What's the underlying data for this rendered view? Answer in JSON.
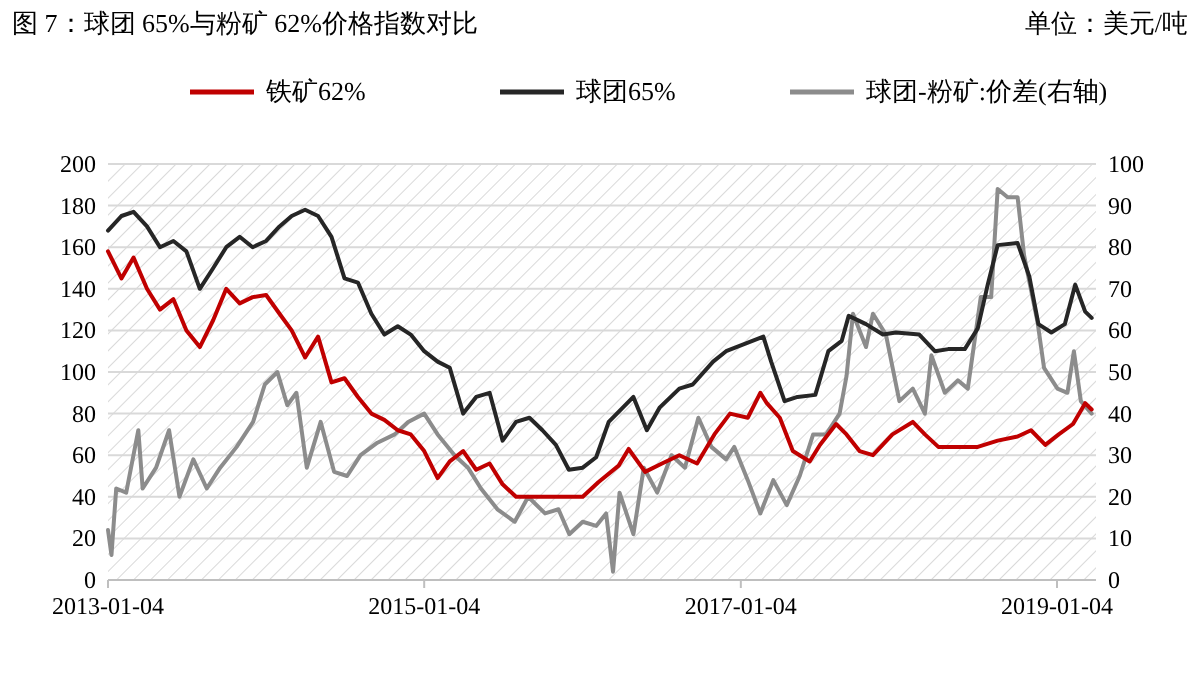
{
  "chart_data": {
    "type": "line",
    "title": "图 7：球团 65%与粉矿 62%价格指数对比",
    "annotations": [
      "单位：美元/吨"
    ],
    "xlim": [
      "2013-01-04",
      "2019-04-04"
    ],
    "xticks": [
      {
        "value": "2013-01-04",
        "label": "2013-01-04"
      },
      {
        "value": "2015-01-04",
        "label": "2015-01-04"
      },
      {
        "value": "2017-01-04",
        "label": "2017-01-04"
      },
      {
        "value": "2019-01-04",
        "label": "2019-01-04"
      }
    ],
    "ylim": [
      0,
      200
    ],
    "yticks": [
      0,
      20,
      40,
      60,
      80,
      100,
      120,
      140,
      160,
      180,
      200
    ],
    "y2lim": [
      0,
      100
    ],
    "y2ticks": [
      0,
      10,
      20,
      30,
      40,
      50,
      60,
      70,
      80,
      90,
      100
    ],
    "grid": "y",
    "legend": "top",
    "series": [
      {
        "name": "铁矿62%",
        "color": "#c00000",
        "x": [
          "2013-01-04",
          "2013-02-04",
          "2013-03-04",
          "2013-04-04",
          "2013-05-04",
          "2013-06-04",
          "2013-07-04",
          "2013-08-04",
          "2013-09-04",
          "2013-10-04",
          "2013-11-04",
          "2013-12-04",
          "2014-01-04",
          "2014-02-04",
          "2014-03-04",
          "2014-04-04",
          "2014-05-04",
          "2014-06-04",
          "2014-07-04",
          "2014-08-04",
          "2014-09-04",
          "2014-10-04",
          "2014-11-04",
          "2014-12-04",
          "2015-01-04",
          "2015-02-04",
          "2015-03-04",
          "2015-04-04",
          "2015-05-04",
          "2015-06-04",
          "2015-07-04",
          "2015-08-04",
          "2015-09-04",
          "2016-01-05",
          "2016-02-10",
          "2016-03-28",
          "2016-04-20",
          "2016-05-28",
          "2016-07-06",
          "2016-08-15",
          "2016-09-25",
          "2016-11-04",
          "2016-12-10",
          "2017-01-20",
          "2017-02-18",
          "2017-03-05",
          "2017-04-04",
          "2017-05-04",
          "2017-06-12",
          "2017-07-06",
          "2017-08-12",
          "2017-09-05",
          "2017-10-05",
          "2017-11-05",
          "2017-12-20",
          "2018-02-05",
          "2018-03-05",
          "2018-04-05",
          "2018-05-20",
          "2018-07-05",
          "2018-08-20",
          "2018-10-05",
          "2018-11-05",
          "2018-12-08",
          "2019-01-08",
          "2019-02-10",
          "2019-03-10",
          "2019-03-25"
        ],
        "values": [
          158,
          145,
          155,
          140,
          130,
          135,
          120,
          112,
          125,
          140,
          133,
          136,
          137,
          128,
          120,
          107,
          117,
          95,
          97,
          88,
          80,
          77,
          72,
          70,
          62,
          49,
          57,
          62,
          53,
          56,
          46,
          40,
          40,
          40,
          47,
          55,
          63,
          52,
          56,
          60,
          56,
          70,
          80,
          78,
          90,
          85,
          78,
          62,
          57,
          65,
          75,
          70,
          62,
          60,
          70,
          76,
          70,
          64,
          64,
          64,
          67,
          69,
          72,
          65,
          70,
          75,
          85,
          82
        ]
      },
      {
        "name": "球团65%",
        "color": "#262626",
        "x": [
          "2013-01-04",
          "2013-02-04",
          "2013-03-04",
          "2013-04-04",
          "2013-05-04",
          "2013-06-04",
          "2013-07-04",
          "2013-08-04",
          "2013-09-04",
          "2013-10-04",
          "2013-11-04",
          "2013-12-04",
          "2014-01-04",
          "2014-02-04",
          "2014-03-04",
          "2014-04-04",
          "2014-05-04",
          "2014-06-04",
          "2014-07-04",
          "2014-08-04",
          "2014-09-04",
          "2014-10-04",
          "2014-11-04",
          "2014-12-04",
          "2015-01-04",
          "2015-02-04",
          "2015-03-04",
          "2015-04-04",
          "2015-05-04",
          "2015-06-04",
          "2015-07-04",
          "2015-08-04",
          "2015-09-04",
          "2015-10-04",
          "2015-11-04",
          "2015-12-04",
          "2016-01-05",
          "2016-02-05",
          "2016-03-05",
          "2016-05-01",
          "2016-06-01",
          "2016-07-01",
          "2016-08-15",
          "2016-09-15",
          "2016-11-01",
          "2016-12-01",
          "2017-02-25",
          "2017-03-15",
          "2017-04-15",
          "2017-05-15",
          "2017-06-25",
          "2017-07-25",
          "2017-08-25",
          "2017-09-10",
          "2017-10-20",
          "2017-11-28",
          "2017-12-28",
          "2018-02-20",
          "2018-03-28",
          "2018-04-28",
          "2018-06-05",
          "2018-07-05",
          "2018-07-28",
          "2018-08-20",
          "2018-10-05",
          "2018-11-01",
          "2018-11-22",
          "2018-12-22",
          "2019-01-22",
          "2019-02-15",
          "2019-03-10",
          "2019-03-25"
        ],
        "values": [
          168,
          175,
          177,
          170,
          160,
          163,
          158,
          140,
          150,
          160,
          165,
          160,
          163,
          170,
          175,
          178,
          175,
          165,
          145,
          143,
          128,
          118,
          122,
          118,
          110,
          105,
          102,
          80,
          88,
          90,
          67,
          76,
          78,
          72,
          65,
          53,
          54,
          59,
          76,
          88,
          72,
          83,
          92,
          94,
          105,
          110,
          117,
          105,
          86,
          88,
          89,
          110,
          115,
          127,
          123,
          118,
          119,
          118,
          110,
          111,
          111,
          121,
          142,
          161,
          162,
          146,
          123,
          119,
          123,
          142,
          129,
          126
        ]
      },
      {
        "name": "球团-粉矿:价差(右轴)",
        "color": "#8c8c8c",
        "axis": "y2",
        "x": [
          "2013-01-04",
          "2013-01-12",
          "2013-01-23",
          "2013-02-15",
          "2013-03-15",
          "2013-03-25",
          "2013-04-25",
          "2013-05-25",
          "2013-06-18",
          "2013-07-20",
          "2013-08-20",
          "2013-09-20",
          "2013-10-28",
          "2013-12-05",
          "2014-01-01",
          "2014-01-30",
          "2014-02-22",
          "2014-03-15",
          "2014-04-08",
          "2014-05-10",
          "2014-06-10",
          "2014-07-10",
          "2014-08-10",
          "2014-09-18",
          "2014-10-28",
          "2014-11-28",
          "2015-01-04",
          "2015-02-04",
          "2015-03-15",
          "2015-04-15",
          "2015-05-15",
          "2015-06-22",
          "2015-08-01",
          "2015-09-01",
          "2015-10-10",
          "2015-11-10",
          "2015-12-05",
          "2016-01-05",
          "2016-02-05",
          "2016-02-28",
          "2016-03-15",
          "2016-03-30",
          "2016-05-01",
          "2016-05-25",
          "2016-06-25",
          "2016-07-28",
          "2016-08-28",
          "2016-09-28",
          "2016-10-28",
          "2016-12-01",
          "2016-12-20",
          "2017-01-20",
          "2017-02-18",
          "2017-03-20",
          "2017-04-20",
          "2017-05-20",
          "2017-06-20",
          "2017-07-20",
          "2017-08-20",
          "2017-09-05",
          "2017-09-20",
          "2017-10-20",
          "2017-11-05",
          "2017-12-05",
          "2018-01-05",
          "2018-02-05",
          "2018-03-05",
          "2018-03-20",
          "2018-04-20",
          "2018-05-20",
          "2018-06-12",
          "2018-07-12",
          "2018-08-05",
          "2018-08-20",
          "2018-09-12",
          "2018-10-05",
          "2018-10-20",
          "2018-11-20",
          "2018-12-05",
          "2019-01-05",
          "2019-01-28",
          "2019-02-12",
          "2019-02-28",
          "2019-03-25"
        ],
        "values": [
          12,
          6,
          22,
          21,
          36,
          22,
          27,
          36,
          20,
          29,
          22,
          27,
          32,
          38,
          47,
          50,
          42,
          45,
          27,
          38,
          26,
          25,
          30,
          33,
          35,
          38,
          40,
          35,
          30,
          27,
          22,
          17,
          14,
          20,
          16,
          17,
          11,
          14,
          13,
          16,
          2,
          21,
          11,
          27,
          21,
          30,
          27,
          39,
          32,
          29,
          32,
          24,
          16,
          24,
          18,
          25,
          35,
          35,
          40,
          49,
          64,
          56,
          64,
          59,
          43,
          46,
          40,
          54,
          45,
          48,
          46,
          68,
          68,
          94,
          92,
          92,
          78,
          62,
          51,
          46,
          45,
          55,
          43,
          40
        ]
      }
    ]
  }
}
